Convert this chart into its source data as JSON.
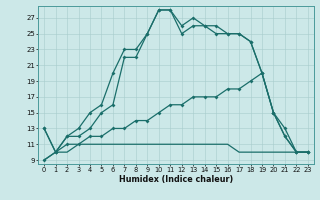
{
  "xlabel": "Humidex (Indice chaleur)",
  "bg_color": "#cce8e8",
  "line_color": "#1a6e6a",
  "xlim": [
    -0.5,
    23.5
  ],
  "ylim": [
    8.5,
    28.5
  ],
  "xticks": [
    0,
    1,
    2,
    3,
    4,
    5,
    6,
    7,
    8,
    9,
    10,
    11,
    12,
    13,
    14,
    15,
    16,
    17,
    18,
    19,
    20,
    21,
    22,
    23
  ],
  "yticks": [
    9,
    11,
    13,
    15,
    17,
    19,
    21,
    23,
    25,
    27
  ],
  "line1_y": [
    13,
    10,
    12,
    13,
    15,
    16,
    20,
    23,
    23,
    25,
    28,
    28,
    26,
    27,
    26,
    26,
    25,
    25,
    24,
    20,
    15,
    13,
    10,
    10
  ],
  "line2_y": [
    13,
    10,
    12,
    12,
    13,
    15,
    16,
    22,
    22,
    25,
    28,
    28,
    25,
    26,
    26,
    25,
    25,
    25,
    24,
    20,
    15,
    12,
    10,
    10
  ],
  "line3_y": [
    9,
    10,
    11,
    11,
    12,
    12,
    13,
    13,
    14,
    14,
    15,
    16,
    16,
    17,
    17,
    17,
    18,
    18,
    19,
    20,
    15,
    12,
    10,
    10
  ],
  "line4_y": [
    9,
    10,
    10,
    11,
    11,
    11,
    11,
    11,
    11,
    11,
    11,
    11,
    11,
    11,
    11,
    11,
    11,
    10,
    10,
    10,
    10,
    10,
    10,
    10
  ]
}
